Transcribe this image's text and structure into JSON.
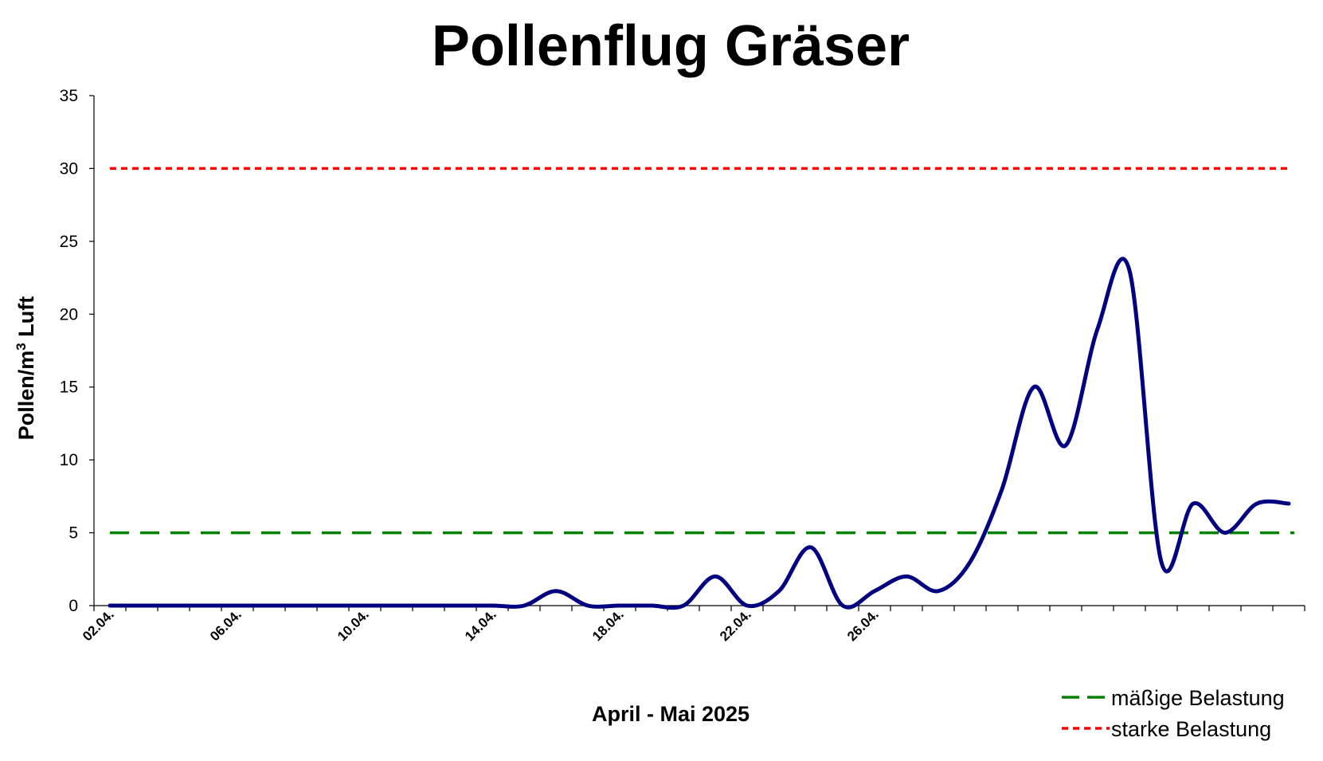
{
  "chart_data": {
    "type": "line",
    "title": "Pollenflug Gräser",
    "xlabel": "April - Mai 2025",
    "ylabel_main": "Pollen/m",
    "ylabel_sup": "3",
    "ylabel_tail": " Luft",
    "ylim": [
      0,
      35
    ],
    "yticks": [
      0,
      5,
      10,
      15,
      20,
      25,
      30,
      35
    ],
    "x_tick_labels": [
      "02.04.",
      "06.04.",
      "10.04.",
      "14.04.",
      "18.04.",
      "22.04.",
      "26.04."
    ],
    "x_label_every": 4,
    "x_num_days": 38,
    "series": [
      {
        "name": "",
        "color": "#000080",
        "x": [
          0,
          1,
          2,
          3,
          4,
          5,
          6,
          7,
          8,
          9,
          10,
          11,
          12,
          13,
          14,
          15,
          16,
          17,
          18,
          19,
          20,
          21,
          22,
          23,
          24,
          25,
          26,
          27,
          28,
          29,
          30,
          31,
          32,
          33,
          34,
          35,
          36,
          37
        ],
        "values": [
          0,
          0,
          0,
          0,
          0,
          0,
          0,
          0,
          0,
          0,
          0,
          0,
          0,
          0,
          1,
          0,
          0,
          0,
          0,
          2,
          0,
          1,
          4,
          0,
          1,
          2,
          1,
          3,
          8,
          15,
          11,
          19,
          23,
          3,
          7,
          5,
          7,
          7
        ]
      }
    ],
    "thresholds": [
      {
        "name": "mäßige Belastung",
        "value": 5,
        "color": "#008000",
        "style": "long-dash"
      },
      {
        "name": "starke Belastung",
        "value": 30,
        "color": "#ff0000",
        "style": "short-dash"
      }
    ],
    "legend_position": "bottom-right",
    "grid": false
  }
}
